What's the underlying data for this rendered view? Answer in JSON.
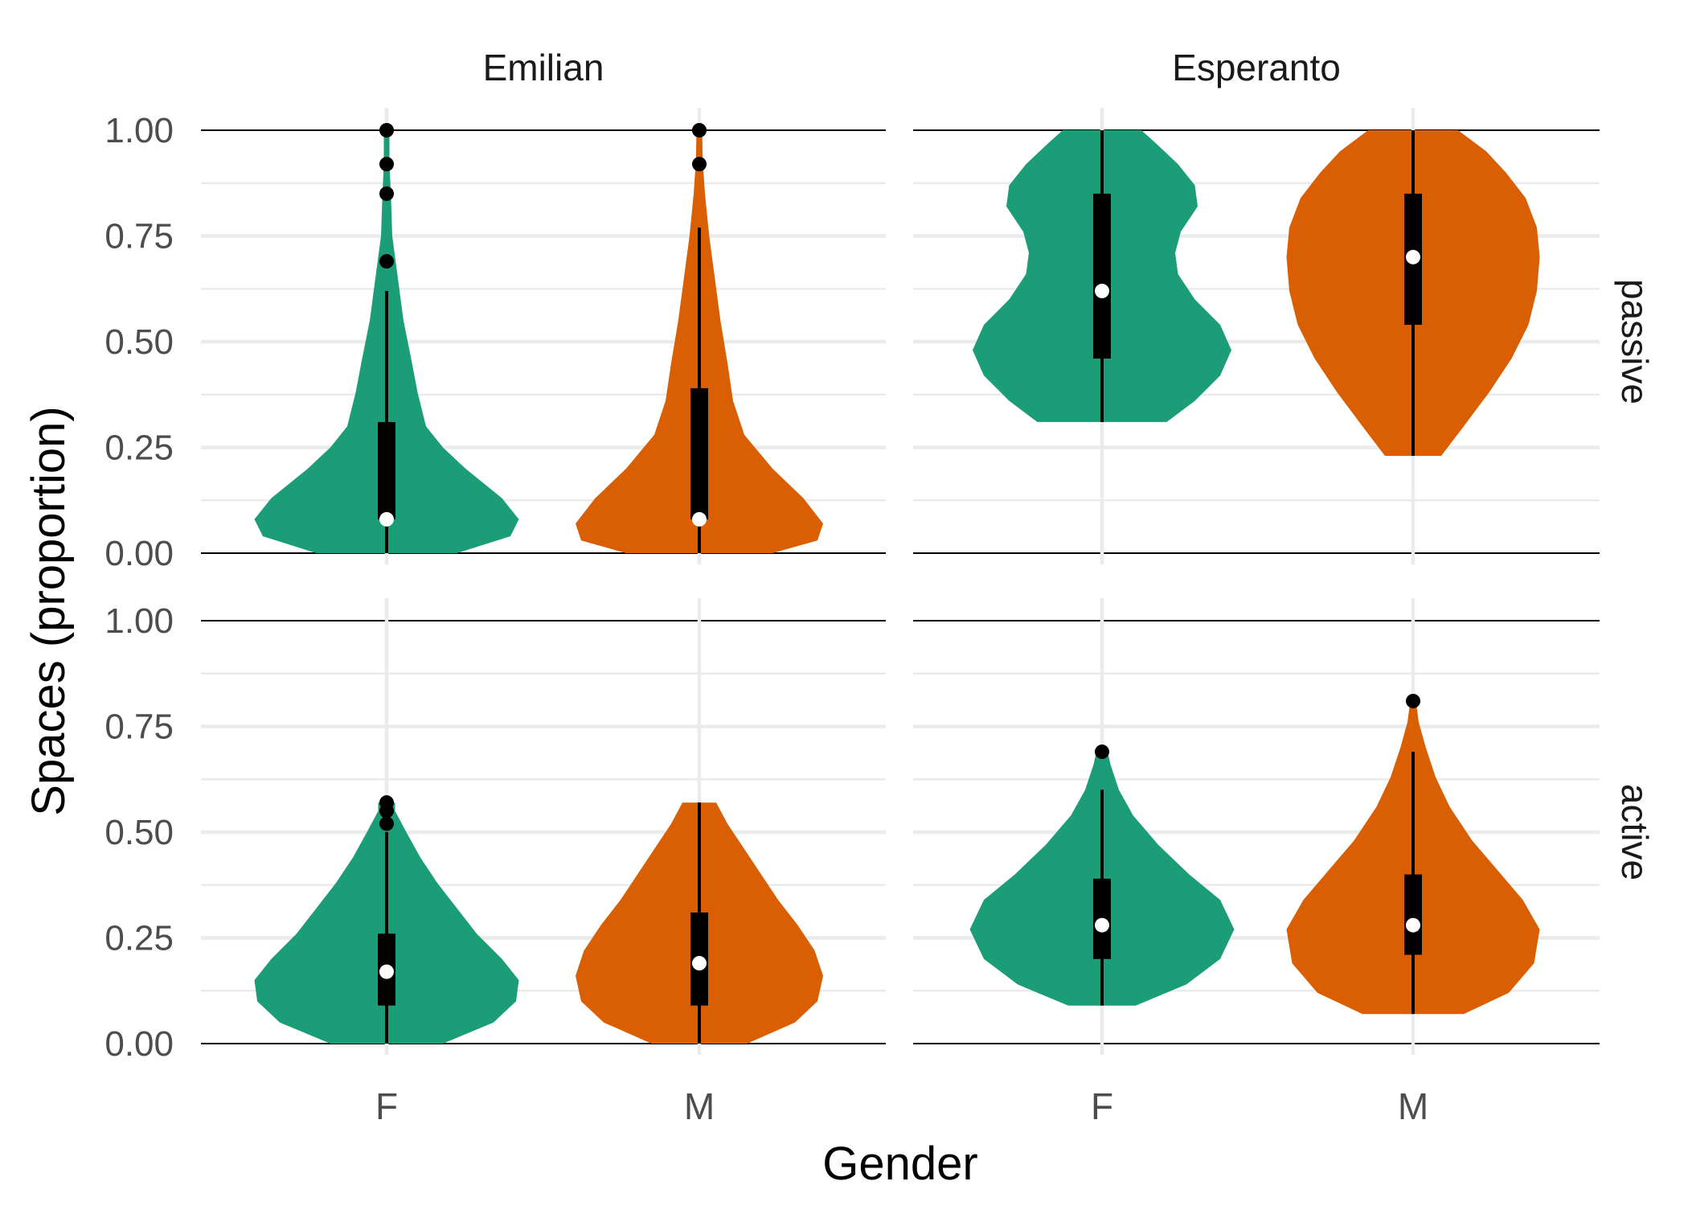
{
  "chart_data": {
    "type": "violin",
    "xlabel": "Gender",
    "ylabel": "Spaces (proportion)",
    "categories": [
      "F",
      "M"
    ],
    "ylim": [
      0,
      1
    ],
    "yticks": [
      0,
      0.25,
      0.5,
      0.75,
      1
    ],
    "ytick_labels": [
      "0.00",
      "0.25",
      "0.50",
      "0.75",
      "1.00"
    ],
    "column_facets": [
      "Emilian",
      "Esperanto"
    ],
    "row_facets": [
      "passive",
      "active"
    ],
    "grid": true,
    "legend": "none",
    "colors": {
      "F": "#1b9e77",
      "M": "#d95f02",
      "box": "#000000",
      "median": "#ffffff",
      "outlier": "#000000"
    },
    "panels": [
      {
        "column": "Emilian",
        "row": "passive",
        "groups": [
          {
            "gender": "F",
            "min": 0.0,
            "max": 1.0,
            "q1": 0.08,
            "median": 0.08,
            "q3": 0.31,
            "whisker_low": 0.0,
            "whisker_high": 0.62,
            "outliers": [
              0.69,
              0.85,
              0.92,
              1.0
            ],
            "violin": [
              [
                0.0,
                0.25
              ],
              [
                0.04,
                0.44
              ],
              [
                0.08,
                0.47
              ],
              [
                0.13,
                0.41
              ],
              [
                0.2,
                0.28
              ],
              [
                0.25,
                0.2
              ],
              [
                0.3,
                0.14
              ],
              [
                0.38,
                0.11
              ],
              [
                0.45,
                0.09
              ],
              [
                0.55,
                0.06
              ],
              [
                0.65,
                0.04
              ],
              [
                0.75,
                0.02
              ],
              [
                0.85,
                0.015
              ],
              [
                0.92,
                0.01
              ],
              [
                1.0,
                0.01
              ]
            ]
          },
          {
            "gender": "M",
            "min": 0.0,
            "max": 1.0,
            "q1": 0.08,
            "median": 0.08,
            "q3": 0.39,
            "whisker_low": 0.0,
            "whisker_high": 0.77,
            "outliers": [
              0.92,
              1.0
            ],
            "violin": [
              [
                0.0,
                0.26
              ],
              [
                0.03,
                0.42
              ],
              [
                0.07,
                0.44
              ],
              [
                0.13,
                0.37
              ],
              [
                0.2,
                0.26
              ],
              [
                0.28,
                0.16
              ],
              [
                0.36,
                0.12
              ],
              [
                0.45,
                0.1
              ],
              [
                0.55,
                0.075
              ],
              [
                0.65,
                0.055
              ],
              [
                0.75,
                0.035
              ],
              [
                0.85,
                0.02
              ],
              [
                0.93,
                0.012
              ],
              [
                1.0,
                0.01
              ]
            ]
          }
        ]
      },
      {
        "column": "Esperanto",
        "row": "passive",
        "groups": [
          {
            "gender": "F",
            "min": 0.31,
            "max": 1.0,
            "q1": 0.46,
            "median": 0.62,
            "q3": 0.85,
            "whisker_low": 0.31,
            "whisker_high": 1.0,
            "outliers": [],
            "violin": [
              [
                0.31,
                0.23
              ],
              [
                0.36,
                0.33
              ],
              [
                0.42,
                0.42
              ],
              [
                0.48,
                0.46
              ],
              [
                0.54,
                0.42
              ],
              [
                0.6,
                0.33
              ],
              [
                0.66,
                0.27
              ],
              [
                0.71,
                0.26
              ],
              [
                0.76,
                0.28
              ],
              [
                0.82,
                0.34
              ],
              [
                0.87,
                0.33
              ],
              [
                0.92,
                0.27
              ],
              [
                0.97,
                0.19
              ],
              [
                1.0,
                0.14
              ]
            ]
          },
          {
            "gender": "M",
            "min": 0.23,
            "max": 1.0,
            "q1": 0.54,
            "median": 0.7,
            "q3": 0.85,
            "whisker_low": 0.23,
            "whisker_high": 1.0,
            "outliers": [],
            "violin": [
              [
                0.23,
                0.1
              ],
              [
                0.3,
                0.18
              ],
              [
                0.38,
                0.27
              ],
              [
                0.46,
                0.35
              ],
              [
                0.54,
                0.41
              ],
              [
                0.62,
                0.44
              ],
              [
                0.7,
                0.45
              ],
              [
                0.77,
                0.44
              ],
              [
                0.84,
                0.4
              ],
              [
                0.9,
                0.33
              ],
              [
                0.95,
                0.26
              ],
              [
                1.0,
                0.16
              ]
            ]
          }
        ]
      },
      {
        "column": "Emilian",
        "row": "active",
        "groups": [
          {
            "gender": "F",
            "min": 0.0,
            "max": 0.57,
            "q1": 0.09,
            "median": 0.17,
            "q3": 0.26,
            "whisker_low": 0.0,
            "whisker_high": 0.5,
            "outliers": [
              0.52,
              0.55,
              0.57
            ],
            "violin": [
              [
                0.0,
                0.2
              ],
              [
                0.05,
                0.38
              ],
              [
                0.1,
                0.46
              ],
              [
                0.15,
                0.47
              ],
              [
                0.2,
                0.41
              ],
              [
                0.26,
                0.32
              ],
              [
                0.32,
                0.25
              ],
              [
                0.38,
                0.18
              ],
              [
                0.44,
                0.12
              ],
              [
                0.5,
                0.07
              ],
              [
                0.55,
                0.03
              ],
              [
                0.57,
                0.03
              ]
            ]
          },
          {
            "gender": "M",
            "min": 0.0,
            "max": 0.57,
            "q1": 0.09,
            "median": 0.19,
            "q3": 0.31,
            "whisker_low": 0.0,
            "whisker_high": 0.57,
            "outliers": [],
            "violin": [
              [
                0.0,
                0.17
              ],
              [
                0.05,
                0.34
              ],
              [
                0.1,
                0.42
              ],
              [
                0.16,
                0.44
              ],
              [
                0.22,
                0.41
              ],
              [
                0.28,
                0.35
              ],
              [
                0.34,
                0.28
              ],
              [
                0.4,
                0.22
              ],
              [
                0.46,
                0.16
              ],
              [
                0.52,
                0.1
              ],
              [
                0.57,
                0.06
              ]
            ]
          }
        ]
      },
      {
        "column": "Esperanto",
        "row": "active",
        "groups": [
          {
            "gender": "F",
            "min": 0.09,
            "max": 0.69,
            "q1": 0.2,
            "median": 0.28,
            "q3": 0.39,
            "whisker_low": 0.09,
            "whisker_high": 0.6,
            "outliers": [
              0.69
            ],
            "violin": [
              [
                0.09,
                0.12
              ],
              [
                0.14,
                0.3
              ],
              [
                0.2,
                0.42
              ],
              [
                0.27,
                0.47
              ],
              [
                0.34,
                0.42
              ],
              [
                0.4,
                0.31
              ],
              [
                0.47,
                0.2
              ],
              [
                0.54,
                0.11
              ],
              [
                0.6,
                0.06
              ],
              [
                0.66,
                0.03
              ],
              [
                0.69,
                0.02
              ]
            ]
          },
          {
            "gender": "M",
            "min": 0.07,
            "max": 0.81,
            "q1": 0.21,
            "median": 0.28,
            "q3": 0.4,
            "whisker_low": 0.07,
            "whisker_high": 0.69,
            "outliers": [
              0.81
            ],
            "violin": [
              [
                0.07,
                0.18
              ],
              [
                0.12,
                0.34
              ],
              [
                0.19,
                0.43
              ],
              [
                0.27,
                0.45
              ],
              [
                0.34,
                0.39
              ],
              [
                0.41,
                0.3
              ],
              [
                0.48,
                0.21
              ],
              [
                0.56,
                0.13
              ],
              [
                0.63,
                0.08
              ],
              [
                0.7,
                0.045
              ],
              [
                0.76,
                0.02
              ],
              [
                0.81,
                0.01
              ]
            ]
          }
        ]
      }
    ]
  }
}
